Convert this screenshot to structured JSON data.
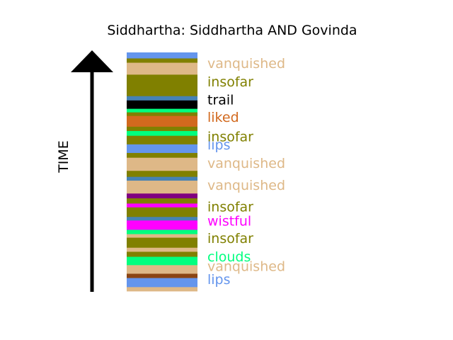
{
  "chart_data": {
    "type": "bar",
    "title": "Siddhartha: Siddhartha AND Govinda",
    "xlabel": "",
    "ylabel": "TIME",
    "y_direction": "up",
    "ylim": [
      0,
      1
    ],
    "grid": false,
    "legend": "none",
    "colors": {
      "vanquished": "#deb887",
      "insofar": "#808000",
      "trail": "#000000",
      "liked": "#d2691e",
      "lips": "#6495ed",
      "wistful": "#ff00ff",
      "clouds": "#00ff7f",
      "purple": "#800080",
      "brown": "#8b4513",
      "teal": "#4682b4"
    },
    "bands": [
      {
        "start": 0.0,
        "end": 0.018,
        "word": "vanquished"
      },
      {
        "start": 0.018,
        "end": 0.056,
        "word": "lips"
      },
      {
        "start": 0.056,
        "end": 0.074,
        "word": "brown"
      },
      {
        "start": 0.074,
        "end": 0.11,
        "word": "vanquished"
      },
      {
        "start": 0.11,
        "end": 0.145,
        "word": "clouds"
      },
      {
        "start": 0.145,
        "end": 0.166,
        "word": "insofar"
      },
      {
        "start": 0.166,
        "end": 0.183,
        "word": "vanquished"
      },
      {
        "start": 0.183,
        "end": 0.225,
        "word": "insofar"
      },
      {
        "start": 0.225,
        "end": 0.24,
        "word": "vanquished"
      },
      {
        "start": 0.24,
        "end": 0.258,
        "word": "clouds"
      },
      {
        "start": 0.258,
        "end": 0.297,
        "word": "wistful"
      },
      {
        "start": 0.297,
        "end": 0.312,
        "word": "teal"
      },
      {
        "start": 0.312,
        "end": 0.352,
        "word": "insofar"
      },
      {
        "start": 0.352,
        "end": 0.368,
        "word": "wistful"
      },
      {
        "start": 0.368,
        "end": 0.39,
        "word": "insofar"
      },
      {
        "start": 0.39,
        "end": 0.41,
        "word": "purple"
      },
      {
        "start": 0.41,
        "end": 0.464,
        "word": "vanquished"
      },
      {
        "start": 0.464,
        "end": 0.48,
        "word": "teal"
      },
      {
        "start": 0.48,
        "end": 0.505,
        "word": "insofar"
      },
      {
        "start": 0.505,
        "end": 0.56,
        "word": "vanquished"
      },
      {
        "start": 0.56,
        "end": 0.58,
        "word": "insofar"
      },
      {
        "start": 0.58,
        "end": 0.616,
        "word": "lips"
      },
      {
        "start": 0.616,
        "end": 0.652,
        "word": "insofar"
      },
      {
        "start": 0.652,
        "end": 0.672,
        "word": "clouds"
      },
      {
        "start": 0.672,
        "end": 0.69,
        "word": "insofar"
      },
      {
        "start": 0.69,
        "end": 0.735,
        "word": "liked"
      },
      {
        "start": 0.735,
        "end": 0.75,
        "word": "insofar"
      },
      {
        "start": 0.75,
        "end": 0.765,
        "word": "clouds"
      },
      {
        "start": 0.765,
        "end": 0.8,
        "word": "trail"
      },
      {
        "start": 0.8,
        "end": 0.818,
        "word": "teal"
      },
      {
        "start": 0.818,
        "end": 0.908,
        "word": "insofar"
      },
      {
        "start": 0.908,
        "end": 0.958,
        "word": "vanquished"
      },
      {
        "start": 0.958,
        "end": 0.976,
        "word": "insofar"
      },
      {
        "start": 0.976,
        "end": 1.0,
        "word": "lips"
      }
    ],
    "labels": [
      {
        "text": "lips",
        "at": 0.05
      },
      {
        "text": "vanquished",
        "at": 0.105
      },
      {
        "text": "clouds",
        "at": 0.145
      },
      {
        "text": "insofar",
        "at": 0.222
      },
      {
        "text": "wistful",
        "at": 0.296
      },
      {
        "text": "insofar",
        "at": 0.355
      },
      {
        "text": "vanquished",
        "at": 0.445
      },
      {
        "text": "vanquished",
        "at": 0.537
      },
      {
        "text": "lips",
        "at": 0.615
      },
      {
        "text": "insofar",
        "at": 0.649
      },
      {
        "text": "liked",
        "at": 0.73
      },
      {
        "text": "trail",
        "at": 0.803
      },
      {
        "text": "insofar",
        "at": 0.878
      },
      {
        "text": "vanquished",
        "at": 0.955
      }
    ]
  }
}
